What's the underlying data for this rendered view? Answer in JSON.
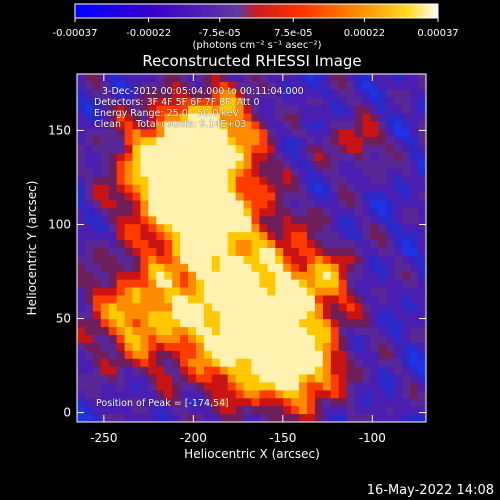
{
  "chart_data": {
    "type": "heatmap",
    "title": "Reconstructed RHESSI Image",
    "xlabel": "Heliocentric X (arcsec)",
    "ylabel": "Heliocentric Y (arcsec)",
    "xlim": [
      -265,
      -70
    ],
    "ylim": [
      -5,
      180
    ],
    "x_ticks": [
      "-250",
      "-200",
      "-150",
      "-100"
    ],
    "y_ticks": [
      "0",
      "50",
      "100",
      "150"
    ],
    "x_tick_values": [
      -250,
      -200,
      -150,
      -100
    ],
    "y_tick_values": [
      0,
      50,
      100,
      150
    ],
    "colorbar": {
      "min": -0.00037,
      "max": 0.00037,
      "tick_labels": [
        "-0.00037",
        "-0.00022",
        "-7.5e-05",
        "7.5e-05",
        "0.00022",
        "0.00037"
      ],
      "tick_values": [
        -0.00037,
        -0.00022,
        -7.5e-05,
        7.5e-05,
        0.00022,
        0.00037
      ],
      "unit_label": "(photons cm⁻² s⁻¹ asec⁻²)",
      "colors": [
        "#0000ff",
        "#3a00c8",
        "#5e3aa0",
        "#ff0000",
        "#ff7800",
        "#ffd200",
        "#ffffff"
      ]
    },
    "grid": false,
    "peak": [
      -174,
      54
    ]
  },
  "annotations": {
    "time_range": "3-Dec-2012 00:05:04.000 to 00:11:04.000",
    "detectors": "Detectors: 3F 4F 5F 6F 7F 8F, Att 0",
    "energy_range": "Energy Range: 25.0 - 50.0 keV",
    "clean_counts": "Clean     Total counts: 9.14E+03",
    "peak_position": "Position of Peak = [-174,54]"
  },
  "footer": {
    "timestamp": "16-May-2022 14:08"
  }
}
